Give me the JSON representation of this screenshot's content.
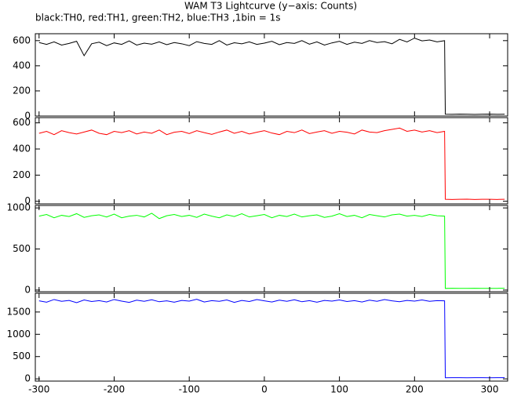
{
  "chart_data": [
    {
      "type": "line",
      "title": "WAM T3 Lightcurve (y−axis: Counts)",
      "subtitle": "black:TH0, red:TH1, green:TH2, blue:TH3 ,1bin = 1s",
      "x": [
        -300,
        -290,
        -280,
        -270,
        -260,
        -250,
        -240,
        -230,
        -220,
        -210,
        -200,
        -190,
        -180,
        -170,
        -160,
        -150,
        -140,
        -130,
        -120,
        -110,
        -100,
        -90,
        -80,
        -70,
        -60,
        -50,
        -40,
        -30,
        -20,
        -10,
        0,
        10,
        20,
        30,
        40,
        50,
        60,
        70,
        80,
        90,
        100,
        110,
        120,
        130,
        140,
        150,
        160,
        170,
        180,
        190,
        200,
        210,
        220,
        230,
        240,
        241,
        250,
        260,
        270,
        280,
        290,
        300,
        310,
        320
      ],
      "series": [
        {
          "name": "TH0",
          "color": "#000000",
          "values": [
            585,
            570,
            590,
            565,
            578,
            595,
            480,
            575,
            588,
            560,
            582,
            570,
            598,
            565,
            580,
            572,
            590,
            568,
            585,
            575,
            560,
            592,
            578,
            570,
            600,
            565,
            583,
            575,
            590,
            570,
            580,
            595,
            568,
            585,
            578,
            600,
            572,
            590,
            565,
            582,
            595,
            570,
            588,
            578,
            600,
            585,
            592,
            575,
            610,
            590,
            620,
            598,
            605,
            590,
            600,
            15,
            14,
            16,
            15,
            13,
            15,
            16,
            14,
            15
          ]
        }
      ],
      "xlim": [
        -305,
        324
      ],
      "xticks": [
        -300,
        -200,
        -100,
        0,
        100,
        200,
        300
      ],
      "ylim": [
        0,
        655
      ],
      "yticks": [
        0,
        200,
        400,
        600
      ]
    },
    {
      "type": "line",
      "x": [
        -300,
        -290,
        -280,
        -270,
        -260,
        -250,
        -240,
        -230,
        -220,
        -210,
        -200,
        -190,
        -180,
        -170,
        -160,
        -150,
        -140,
        -130,
        -120,
        -110,
        -100,
        -90,
        -80,
        -70,
        -60,
        -50,
        -40,
        -30,
        -20,
        -10,
        0,
        10,
        20,
        30,
        40,
        50,
        60,
        70,
        80,
        90,
        100,
        110,
        120,
        130,
        140,
        150,
        160,
        170,
        180,
        190,
        200,
        210,
        220,
        230,
        240,
        241,
        250,
        260,
        270,
        280,
        290,
        300,
        310,
        320
      ],
      "series": [
        {
          "name": "TH1",
          "color": "#ff0000",
          "values": [
            520,
            535,
            510,
            540,
            525,
            515,
            530,
            545,
            520,
            510,
            535,
            525,
            540,
            515,
            530,
            520,
            545,
            510,
            528,
            535,
            518,
            540,
            525,
            512,
            530,
            545,
            520,
            535,
            515,
            528,
            540,
            522,
            510,
            535,
            525,
            545,
            518,
            530,
            540,
            520,
            535,
            528,
            515,
            545,
            530,
            525,
            540,
            550,
            560,
            535,
            545,
            530,
            540,
            525,
            535,
            15,
            14,
            15,
            16,
            14,
            15,
            15,
            14,
            15
          ]
        }
      ],
      "xlim": [
        -305,
        324
      ],
      "xticks": [
        -300,
        -200,
        -100,
        0,
        100,
        200,
        300
      ],
      "ylim": [
        -20,
        640
      ],
      "yticks": [
        0,
        200,
        400,
        600
      ]
    },
    {
      "type": "line",
      "x": [
        -300,
        -290,
        -280,
        -270,
        -260,
        -250,
        -240,
        -230,
        -220,
        -210,
        -200,
        -190,
        -180,
        -170,
        -160,
        -150,
        -140,
        -130,
        -120,
        -110,
        -100,
        -90,
        -80,
        -70,
        -60,
        -50,
        -40,
        -30,
        -20,
        -10,
        0,
        10,
        20,
        30,
        40,
        50,
        60,
        70,
        80,
        90,
        100,
        110,
        120,
        130,
        140,
        150,
        160,
        170,
        180,
        190,
        200,
        210,
        220,
        230,
        240,
        241,
        250,
        260,
        270,
        280,
        290,
        300,
        310,
        320
      ],
      "series": [
        {
          "name": "TH2",
          "color": "#00ff00",
          "values": [
            900,
            920,
            880,
            910,
            895,
            930,
            885,
            905,
            915,
            890,
            925,
            880,
            900,
            910,
            890,
            935,
            870,
            905,
            920,
            895,
            910,
            885,
            925,
            900,
            880,
            915,
            895,
            930,
            890,
            905,
            920,
            880,
            910,
            895,
            925,
            890,
            905,
            915,
            885,
            900,
            930,
            895,
            910,
            880,
            920,
            905,
            890,
            915,
            925,
            900,
            910,
            895,
            920,
            905,
            900,
            20,
            22,
            21,
            20,
            22,
            21,
            20,
            21,
            22
          ]
        }
      ],
      "xlim": [
        -305,
        324
      ],
      "xticks": [
        -300,
        -200,
        -100,
        0,
        100,
        200,
        300
      ],
      "ylim": [
        -20,
        1030
      ],
      "yticks": [
        0,
        500,
        1000
      ]
    },
    {
      "type": "line",
      "x": [
        -300,
        -290,
        -280,
        -270,
        -260,
        -250,
        -240,
        -230,
        -220,
        -210,
        -200,
        -190,
        -180,
        -170,
        -160,
        -150,
        -140,
        -130,
        -120,
        -110,
        -100,
        -90,
        -80,
        -70,
        -60,
        -50,
        -40,
        -30,
        -20,
        -10,
        0,
        10,
        20,
        30,
        40,
        50,
        60,
        70,
        80,
        90,
        100,
        110,
        120,
        130,
        140,
        150,
        160,
        170,
        180,
        190,
        200,
        210,
        220,
        230,
        240,
        241,
        250,
        260,
        270,
        280,
        290,
        300,
        310,
        320
      ],
      "series": [
        {
          "name": "TH3",
          "color": "#0000ff",
          "values": [
            1750,
            1720,
            1780,
            1740,
            1760,
            1710,
            1770,
            1735,
            1755,
            1725,
            1780,
            1745,
            1715,
            1765,
            1740,
            1775,
            1730,
            1750,
            1720,
            1760,
            1745,
            1785,
            1725,
            1755,
            1740,
            1770,
            1715,
            1760,
            1735,
            1780,
            1750,
            1725,
            1765,
            1740,
            1775,
            1730,
            1755,
            1720,
            1760,
            1745,
            1770,
            1735,
            1755,
            1725,
            1765,
            1740,
            1780,
            1750,
            1730,
            1760,
            1745,
            1770,
            1740,
            1755,
            1750,
            25,
            27,
            26,
            25,
            27,
            26,
            25,
            26,
            27
          ]
        }
      ],
      "xlim": [
        -305,
        324
      ],
      "xticks": [
        -300,
        -200,
        -100,
        0,
        100,
        200,
        300
      ],
      "ylim": [
        -50,
        1920
      ],
      "yticks": [
        0,
        500,
        1000,
        1500
      ]
    }
  ]
}
